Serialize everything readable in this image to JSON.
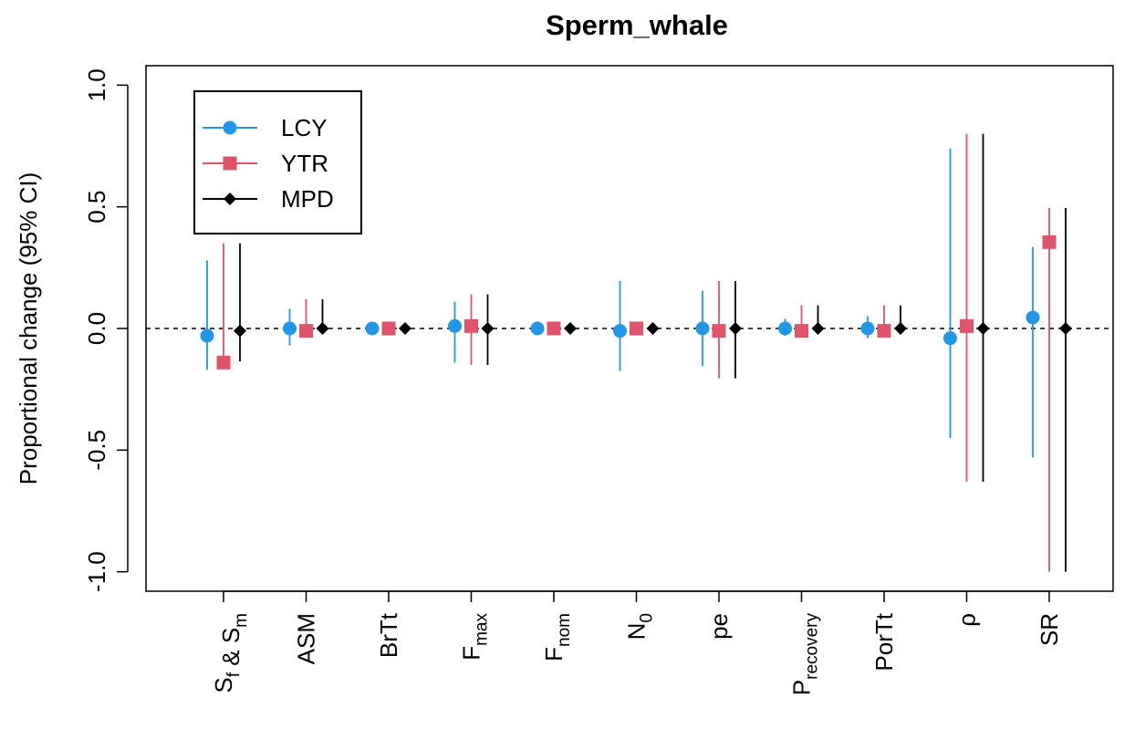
{
  "chart_data": {
    "type": "errorbar",
    "title": "Sperm_whale",
    "y_label": "Proportional change (95% CI)",
    "categories": [
      [
        "S",
        {
          "sub": "f"
        },
        " & S",
        {
          "sub": "m"
        }
      ],
      [
        "ASM"
      ],
      [
        "BrTt"
      ],
      [
        "F",
        {
          "sub": "max"
        }
      ],
      [
        "F",
        {
          "sub": "nom"
        }
      ],
      [
        "N",
        {
          "sub": "0"
        }
      ],
      [
        "pe"
      ],
      [
        "P",
        {
          "sub": "recovery"
        }
      ],
      [
        "PorTt"
      ],
      [
        "ρ"
      ],
      [
        "SR"
      ]
    ],
    "series": [
      {
        "name": "LCY",
        "color": "#2297E6",
        "marker": "circle",
        "values": [
          -0.03,
          0,
          0,
          0.01,
          0,
          -0.01,
          0,
          0,
          0,
          -0.04,
          0.045
        ],
        "lower": [
          -0.17,
          -0.07,
          -0.01,
          -0.14,
          -0.01,
          -0.175,
          -0.155,
          -0.03,
          -0.04,
          -0.45,
          -0.53
        ],
        "upper": [
          0.28,
          0.08,
          0.01,
          0.11,
          0.01,
          0.195,
          0.155,
          0.04,
          0.05,
          0.74,
          0.335
        ]
      },
      {
        "name": "YTR",
        "color": "#DF536B",
        "marker": "square",
        "values": [
          -0.14,
          -0.01,
          0,
          0.01,
          0,
          0,
          -0.01,
          -0.01,
          -0.01,
          0.01,
          0.355
        ],
        "lower": [
          -0.14,
          -0.03,
          -0.01,
          -0.15,
          -0.01,
          -0.01,
          -0.205,
          -0.03,
          -0.03,
          -0.63,
          -1.0
        ],
        "upper": [
          0.35,
          0.12,
          0.01,
          0.14,
          0.01,
          0.01,
          0.195,
          0.095,
          0.095,
          0.8,
          0.495
        ]
      },
      {
        "name": "MPD",
        "color": "#000000",
        "marker": "diamond",
        "values": [
          -0.01,
          0,
          0,
          0,
          0,
          0,
          0,
          0,
          0,
          0,
          0
        ],
        "lower": [
          -0.135,
          -0.01,
          -0.01,
          -0.15,
          -0.01,
          -0.01,
          -0.205,
          -0.01,
          -0.01,
          -0.63,
          -1.0
        ],
        "upper": [
          0.35,
          0.12,
          0.01,
          0.14,
          0.01,
          0.01,
          0.195,
          0.095,
          0.095,
          0.8,
          0.495
        ]
      }
    ],
    "ylim": [
      -1.08,
      1.08
    ],
    "yticks": [
      {
        "value": -1,
        "label": "-1.0"
      },
      {
        "value": -0.5,
        "label": "-0.5"
      },
      {
        "value": 0,
        "label": "0.0"
      },
      {
        "value": 0.5,
        "label": "0.5"
      },
      {
        "value": 1,
        "label": "1.0"
      }
    ],
    "reference_line": 0,
    "legend": "top-left"
  }
}
